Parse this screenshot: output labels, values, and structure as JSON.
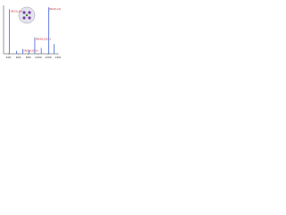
{
  "chart_data": {
    "type": "stick",
    "x": [
      420,
      560,
      690,
      810,
      930,
      1060,
      1210,
      1320
    ],
    "values": [
      92,
      6,
      10,
      8,
      34,
      12,
      96,
      20
    ],
    "peak_labels": [
      "[Ni2(L)]+",
      null,
      "[Ni2(L)Cl]+",
      null,
      "[Ni4(L)2]2+",
      null,
      "[Ni2(L)2]+",
      null
    ],
    "color": "#2a4fd6",
    "label_color": "#c0282d",
    "xlim": [
      300,
      1400
    ],
    "xticks": [
      400,
      600,
      800,
      1000,
      1200,
      1400
    ],
    "ylim": [
      0,
      100
    ],
    "grid": false
  }
}
